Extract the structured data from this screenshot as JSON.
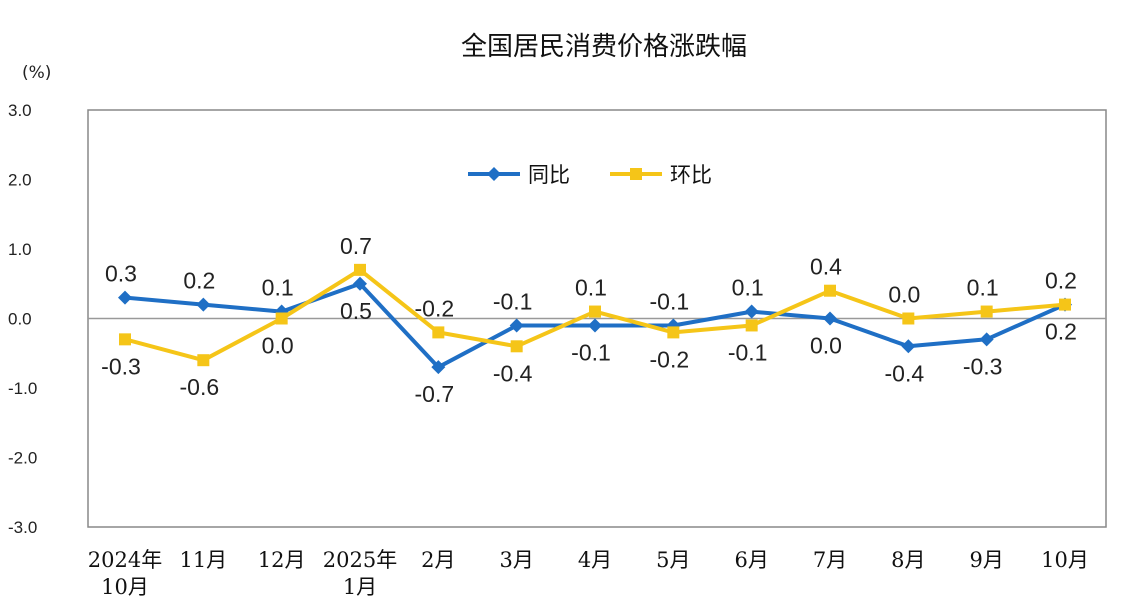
{
  "chart_data": {
    "type": "line",
    "title": "全国居民消费价格涨跌幅",
    "unit_label": "(%)",
    "ylim": [
      -3.0,
      3.0
    ],
    "yticks": [
      "3.0",
      "2.0",
      "1.0",
      "0.0",
      "-1.0",
      "-2.0",
      "-3.0"
    ],
    "categories": [
      [
        "2024年",
        "10月"
      ],
      [
        "11月"
      ],
      [
        "12月"
      ],
      [
        "2025年",
        "1月"
      ],
      [
        "2月"
      ],
      [
        "3月"
      ],
      [
        "4月"
      ],
      [
        "5月"
      ],
      [
        "6月"
      ],
      [
        "7月"
      ],
      [
        "8月"
      ],
      [
        "9月"
      ],
      [
        "10月"
      ]
    ],
    "legend_position": "top-center",
    "grid": false,
    "series": [
      {
        "name": "同比",
        "color": "#1f6fc5",
        "marker": "diamond",
        "values": [
          0.3,
          0.2,
          0.1,
          0.5,
          -0.7,
          -0.1,
          -0.1,
          -0.1,
          0.1,
          0.0,
          -0.4,
          -0.3,
          0.2
        ],
        "labels": [
          "0.3",
          "0.2",
          "0.1",
          "0.5",
          "-0.7",
          "-0.1",
          "-0.1",
          "-0.1",
          "0.1",
          "0.0",
          "-0.4",
          "-0.3",
          "0.2"
        ],
        "label_side": [
          "above",
          "above",
          "above",
          "below",
          "below",
          "above",
          "below",
          "above",
          "above",
          "below",
          "below",
          "below",
          "below"
        ]
      },
      {
        "name": "环比",
        "color": "#f5c518",
        "marker": "square",
        "values": [
          -0.3,
          -0.6,
          0.0,
          0.7,
          -0.2,
          -0.4,
          0.1,
          -0.2,
          -0.1,
          0.4,
          0.0,
          0.1,
          0.2
        ],
        "labels": [
          "-0.3",
          "-0.6",
          "0.0",
          "0.7",
          "-0.2",
          "-0.4",
          "0.1",
          "-0.2",
          "-0.1",
          "0.4",
          "0.0",
          "0.1",
          "0.2"
        ],
        "label_side": [
          "below",
          "below",
          "below",
          "above",
          "above",
          "below",
          "above",
          "below",
          "below",
          "above",
          "above",
          "above",
          "above"
        ]
      }
    ]
  }
}
